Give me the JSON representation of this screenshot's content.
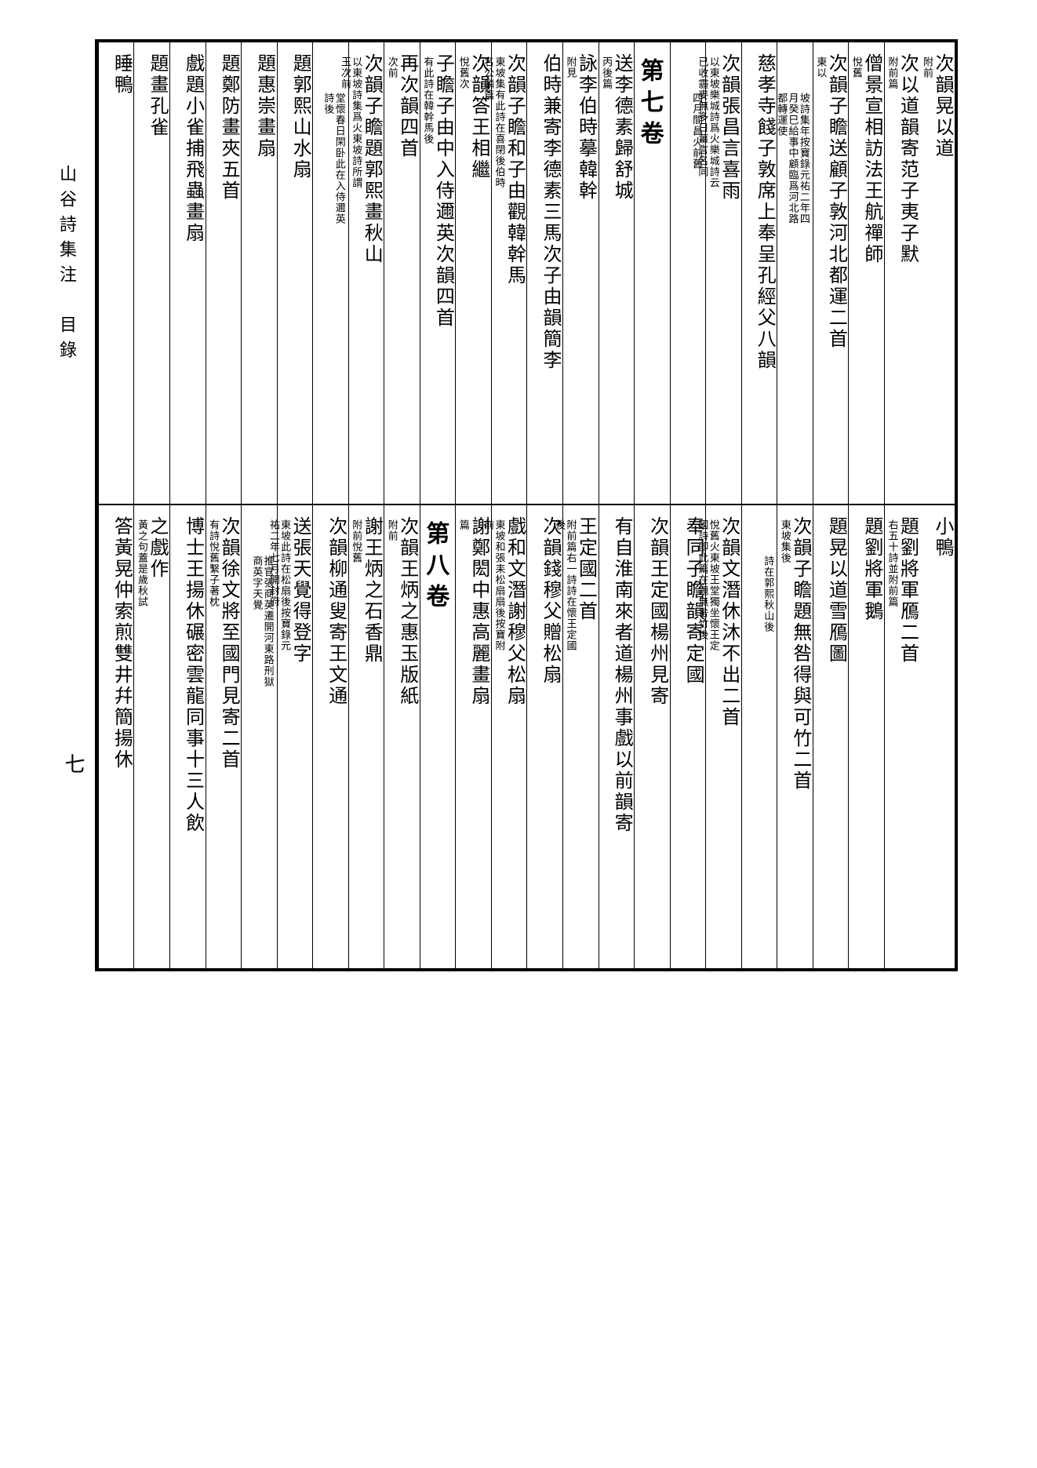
{
  "leftMargin": {
    "title": "山谷詩集注　目錄",
    "pageNumber": "七"
  },
  "topHalf": [
    {
      "type": "entry",
      "main": "次韻晃以道",
      "note": "附前"
    },
    {
      "type": "entry",
      "main": "次以道韻寄范子夷子默",
      "note": "附前篇"
    },
    {
      "type": "entry",
      "main": "僧景宣相訪法王航禪師",
      "note": "悅舊"
    },
    {
      "type": "entry",
      "main": "次韻子瞻送顧子敦河北都運二首",
      "note": "東以"
    },
    {
      "type": "entry",
      "main": "",
      "note": "坡詩集年按寶錄元祐二年四月癸巳給事中顧臨爲河北路都轉運使"
    },
    {
      "type": "entry",
      "main": "慈孝寺餞子敦席上奉呈孔經父八韻"
    },
    {
      "type": "entry",
      "main": "次韻張昌言喜雨",
      "note": "以東坡樂城詩爲火樂城詩云已收霾麥無多日薑言名同"
    },
    {
      "type": "entry",
      "main": "",
      "note": "四月間昌火前舊"
    },
    {
      "type": "volume",
      "main": "第七卷"
    },
    {
      "type": "entry",
      "main": "送李德素歸舒城",
      "note": "丙後篇"
    },
    {
      "type": "entry",
      "main": "詠李伯時摹韓幹",
      "note": "附見"
    },
    {
      "type": "entry",
      "main": "伯時兼寄李德素三馬次子由韻簡李"
    },
    {
      "type": "entry",
      "main": "次韻子瞻和子由觀韓幹馬",
      "note": "東坡集有此詩在喜閉後伯時名公麟篇"
    },
    {
      "type": "entry",
      "main": "次韻答王相繼",
      "note": "悅舊次"
    },
    {
      "type": "entry",
      "main": "子瞻子由中入侍邇英次韻四首",
      "note": "有此詩在韓幹馬後"
    },
    {
      "type": "entry",
      "main": "再次韻四首",
      "note": "次前"
    },
    {
      "type": "entry",
      "main": "次韻子瞻題郭熙畫秋山",
      "note": "以東坡詩集爲火東坡詩所謂玉次前"
    },
    {
      "type": "entry",
      "main": "",
      "note": "堂懷春日閑卧此在入侍邇英詩後"
    },
    {
      "type": "entry",
      "main": "題郭熙山水扇"
    },
    {
      "type": "entry",
      "main": "題惠崇畫扇"
    },
    {
      "type": "entry",
      "main": "題鄭防畫夾五首"
    },
    {
      "type": "entry",
      "main": "戲題小雀捕飛蟲畫扇"
    },
    {
      "type": "entry",
      "main": "題畫孔雀"
    },
    {
      "type": "entry",
      "main": "睡鴨"
    }
  ],
  "bottomHalf": [
    {
      "type": "entry",
      "main": "小鴨"
    },
    {
      "type": "entry",
      "main": "題劉將軍鴈二首",
      "note": "右五十詩並附前篇"
    },
    {
      "type": "entry",
      "main": "題劉將軍鵝"
    },
    {
      "type": "entry",
      "main": "題晃以道雪鴈圖",
      "note": ""
    },
    {
      "type": "entry",
      "main": "次韻子瞻題無咎得與可竹二首",
      "note": "東坡集後"
    },
    {
      "type": "entry",
      "main": "",
      "note": "詩在郭熙秋山後"
    },
    {
      "type": "entry",
      "main": "次韻文潛休沐不出二首",
      "note": "悅舊火東坡王堂獨坐懷王定國詩卽此篇在題無咎竹後"
    },
    {
      "type": "entry",
      "main": "奉同子瞻韻寄定國"
    },
    {
      "type": "entry",
      "main": "次韻王定國楊州見寄"
    },
    {
      "type": "entry",
      "main": "有自淮南來者道楊州事戲以前韻寄"
    },
    {
      "type": "entry",
      "main": "王定國二首",
      "note": "附前篇右一詩詩在懷王定國後"
    },
    {
      "type": "entry",
      "main": "次韻錢穆父贈松扇"
    },
    {
      "type": "entry",
      "main": "戲和文潛謝穆父松扇",
      "note": "東坡和張耒松扇扇後按寶附前"
    },
    {
      "type": "entry",
      "main": "謝鄭閎中惠高麗畫扇",
      "note": "篇"
    },
    {
      "type": "volume",
      "main": "第八卷"
    },
    {
      "type": "entry",
      "main": "次韻王炳之惠玉版紙",
      "note": "附前"
    },
    {
      "type": "entry",
      "main": "謝王炳之石香鼎",
      "note": "附前悅舊"
    },
    {
      "type": "entry",
      "main": "次韻柳通叟寄王文通",
      "note": ""
    },
    {
      "type": "entry",
      "main": "送張天覺得登字",
      "note": "東坡此詩在松扇後按寶錄元祐二年七月開封府"
    },
    {
      "type": "entry",
      "main": "",
      "note": "推官張商英遷開河東路刑獄商英字天覺"
    },
    {
      "type": "entry",
      "main": "次韻徐文將至國門見寄二首",
      "note": "有詩悅舊繫子著枕"
    },
    {
      "type": "entry",
      "main": "博士王揚休碾密雲龍同事十三人飲"
    },
    {
      "type": "entry",
      "main": "之戲作",
      "note": "黃之句蓋是歲秋試"
    },
    {
      "type": "entry",
      "main": "答黃晃仲索煎雙井幷簡揚休"
    }
  ]
}
